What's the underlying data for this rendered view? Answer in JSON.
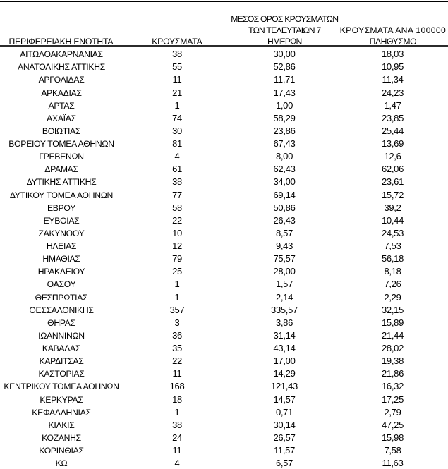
{
  "page": {
    "background": "#ffffff"
  },
  "colors": {
    "text": "#000000",
    "top_rule": "#000000",
    "header_rule": "#1c1c1c"
  },
  "table": {
    "columns": [
      {
        "id": "region",
        "label": "ΠΕΡΙΦΕΡΕΙΑΚΗ ΕΝΟΤΗΤΑ",
        "lines": [
          "ΠΕΡΙΦΕΡΕΙΑΚΗ ΕΝΟΤΗΤΑ"
        ]
      },
      {
        "id": "cases",
        "label": "ΚΡΟΥΣΜΑΤΑ",
        "lines": [
          "ΚΡΟΥΣΜΑΤΑ"
        ]
      },
      {
        "id": "avg7",
        "label": "ΜΕΣΟΣ ΟΡΟΣ ΚΡΟΥΣΜΑΤΩΝ ΤΩΝ ΤΕΛΕΥΤΑΙΩΝ 7 ΗΜΕΡΩΝ",
        "lines": [
          "ΜΕΣΟΣ ΟΡΟΣ ΚΡΟΥΣΜΑΤΩΝ",
          "ΤΩΝ ΤΕΛΕΥΤΑΙΩΝ 7",
          "ΗΜΕΡΩΝ"
        ]
      },
      {
        "id": "per100k",
        "label": "ΚΡΟΥΣΜΑΤΑ ΑΝΑ 100000 ΠΛΗΘΥΣΜΟ",
        "lines": [
          "ΚΡΟΥΣΜΑΤΑ ΑΝΑ 100000",
          "ΠΛΗΘΥΣΜΟ"
        ]
      }
    ],
    "rows": [
      {
        "region": "ΑΙΤΩΛΟΑΚΑΡΝΑΝΙΑΣ",
        "cases": "38",
        "avg7": "30,00",
        "per100k": "18,03"
      },
      {
        "region": "ΑΝΑΤΟΛΙΚΗΣ ΑΤΤΙΚΗΣ",
        "cases": "55",
        "avg7": "52,86",
        "per100k": "10,95"
      },
      {
        "region": "ΑΡΓΟΛΙΔΑΣ",
        "cases": "11",
        "avg7": "11,71",
        "per100k": "11,34"
      },
      {
        "region": "ΑΡΚΑΔΙΑΣ",
        "cases": "21",
        "avg7": "17,43",
        "per100k": "24,23"
      },
      {
        "region": "ΑΡΤΑΣ",
        "cases": "1",
        "avg7": "1,00",
        "per100k": "1,47"
      },
      {
        "region": "ΑΧΑΪΑΣ",
        "cases": "74",
        "avg7": "58,29",
        "per100k": "23,85"
      },
      {
        "region": "ΒΟΙΩΤΙΑΣ",
        "cases": "30",
        "avg7": "23,86",
        "per100k": "25,44"
      },
      {
        "region": "ΒΟΡΕΙΟΥ ΤΟΜΕΑ ΑΘΗΝΩΝ",
        "cases": "81",
        "avg7": "67,43",
        "per100k": "13,69"
      },
      {
        "region": "ΓΡΕΒΕΝΩΝ",
        "cases": "4",
        "avg7": "8,00",
        "per100k": "12,6"
      },
      {
        "region": "ΔΡΑΜΑΣ",
        "cases": "61",
        "avg7": "62,43",
        "per100k": "62,06"
      },
      {
        "region": "ΔΥΤΙΚΗΣ ΑΤΤΙΚΗΣ",
        "cases": "38",
        "avg7": "34,00",
        "per100k": "23,61"
      },
      {
        "region": "ΔΥΤΙΚΟΥ ΤΟΜΕΑ ΑΘΗΝΩΝ",
        "cases": "77",
        "avg7": "69,14",
        "per100k": "15,72"
      },
      {
        "region": "ΕΒΡΟΥ",
        "cases": "58",
        "avg7": "50,86",
        "per100k": "39,2"
      },
      {
        "region": "ΕΥΒΟΙΑΣ",
        "cases": "22",
        "avg7": "26,43",
        "per100k": "10,44"
      },
      {
        "region": "ΖΑΚΥΝΘΟΥ",
        "cases": "10",
        "avg7": "8,57",
        "per100k": "24,53"
      },
      {
        "region": "ΗΛΕΙΑΣ",
        "cases": "12",
        "avg7": "9,43",
        "per100k": "7,53"
      },
      {
        "region": "ΗΜΑΘΙΑΣ",
        "cases": "79",
        "avg7": "75,57",
        "per100k": "56,18"
      },
      {
        "region": "ΗΡΑΚΛΕΙΟΥ",
        "cases": "25",
        "avg7": "28,00",
        "per100k": "8,18"
      },
      {
        "region": "ΘΑΣΟΥ",
        "cases": "1",
        "avg7": "1,57",
        "per100k": "7,26"
      },
      {
        "region": "ΘΕΣΠΡΩΤΙΑΣ",
        "cases": "1",
        "avg7": "2,14",
        "per100k": "2,29"
      },
      {
        "region": "ΘΕΣΣΑΛΟΝΙΚΗΣ",
        "cases": "357",
        "avg7": "335,57",
        "per100k": "32,15"
      },
      {
        "region": "ΘΗΡΑΣ",
        "cases": "3",
        "avg7": "3,86",
        "per100k": "15,89"
      },
      {
        "region": "ΙΩΑΝΝΙΝΩΝ",
        "cases": "36",
        "avg7": "31,14",
        "per100k": "21,44"
      },
      {
        "region": "ΚΑΒΑΛΑΣ",
        "cases": "35",
        "avg7": "43,14",
        "per100k": "28,02"
      },
      {
        "region": "ΚΑΡΔΙΤΣΑΣ",
        "cases": "22",
        "avg7": "17,00",
        "per100k": "19,38"
      },
      {
        "region": "ΚΑΣΤΟΡΙΑΣ",
        "cases": "11",
        "avg7": "14,29",
        "per100k": "21,86"
      },
      {
        "region": "ΚΕΝΤΡΙΚΟΥ ΤΟΜΕΑ ΑΘΗΝΩΝ",
        "cases": "168",
        "avg7": "121,43",
        "per100k": "16,32"
      },
      {
        "region": "ΚΕΡΚΥΡΑΣ",
        "cases": "18",
        "avg7": "14,57",
        "per100k": "17,25"
      },
      {
        "region": "ΚΕΦΑΛΛΗΝΙΑΣ",
        "cases": "1",
        "avg7": "0,71",
        "per100k": "2,79"
      },
      {
        "region": "ΚΙΛΚΙΣ",
        "cases": "38",
        "avg7": "30,14",
        "per100k": "47,25"
      },
      {
        "region": "ΚΟΖΑΝΗΣ",
        "cases": "24",
        "avg7": "26,57",
        "per100k": "15,98"
      },
      {
        "region": "ΚΟΡΙΝΘΙΑΣ",
        "cases": "11",
        "avg7": "11,57",
        "per100k": "7,58"
      },
      {
        "region": "ΚΩ",
        "cases": "4",
        "avg7": "6,57",
        "per100k": "11,63"
      }
    ]
  }
}
